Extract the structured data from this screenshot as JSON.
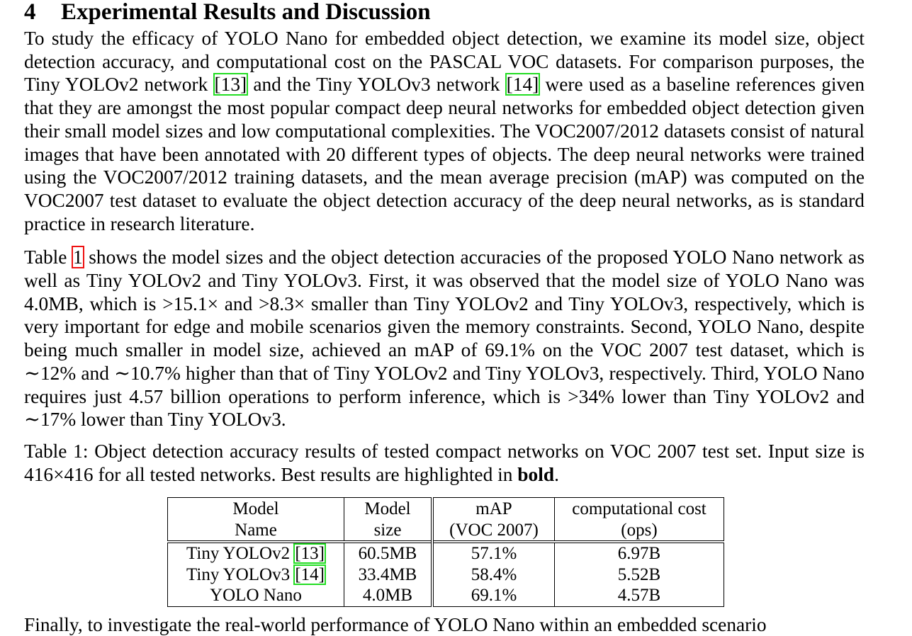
{
  "section": {
    "number": "4",
    "title": "Experimental Results and Discussion"
  },
  "para1": {
    "t1": "To study the efficacy of YOLO Nano for embedded object detection, we examine its model size, object detection accuracy, and computational cost on the PASCAL VOC datasets. For comparison purposes, the Tiny YOLOv2 network ",
    "cite1": "[13]",
    "t2": " and the Tiny YOLOv3 network ",
    "cite2": "[14]",
    "t3": " were used as a baseline references given that they are amongst the most popular compact deep neural networks for embedded object detection given their small model sizes and low computational complexities. The VOC2007/2012 datasets consist of natural images that have been annotated with 20 different types of objects. The deep neural networks were trained using the VOC2007/2012 training datasets, and the mean average precision (mAP) was computed on the VOC2007 test dataset to evaluate the object detection accuracy of the deep neural networks, as is standard practice in research literature."
  },
  "para2": {
    "t1": "Table ",
    "ref": "1",
    "t2": " shows the model sizes and the object detection accuracies of the proposed YOLO Nano network as well as Tiny YOLOv2 and Tiny YOLOv3. First, it was observed that the model size of YOLO Nano was 4.0MB, which is >15.1× and >8.3× smaller than Tiny YOLOv2 and Tiny YOLOv3, respectively, which is very important for edge and mobile scenarios given the memory constraints. Second, YOLO Nano, despite being much smaller in model size, achieved an mAP of 69.1% on the VOC 2007 test dataset, which is ∼12% and ∼10.7% higher than that of Tiny YOLOv2 and Tiny YOLOv3, respectively. Third, YOLO Nano requires just 4.57 billion operations to perform inference, which is >34% lower than Tiny YOLOv2 and ∼17% lower than Tiny YOLOv3."
  },
  "caption": {
    "t1": "Table 1: Object detection accuracy results of tested compact networks on VOC 2007 test set. Input size is 416×416 for all tested networks. Best results are highlighted in ",
    "bold": "bold",
    "t2": "."
  },
  "table": {
    "headers": [
      {
        "line1": "Model",
        "line2": "Name"
      },
      {
        "line1": "Model",
        "line2": "size"
      },
      {
        "line1": "mAP",
        "line2": "(VOC 2007)"
      },
      {
        "line1": "computational cost",
        "line2": "(ops)"
      }
    ],
    "rows": [
      {
        "name": "Tiny YOLOv2 ",
        "cite": "[13]",
        "size": "60.5MB",
        "map": "57.1%",
        "ops": "6.97B"
      },
      {
        "name": "Tiny YOLOv3 ",
        "cite": "[14]",
        "size": "33.4MB",
        "map": "58.4%",
        "ops": "5.52B"
      },
      {
        "name": "YOLO Nano",
        "cite": "",
        "size": "4.0MB",
        "map": "69.1%",
        "ops": "4.57B"
      }
    ]
  },
  "cutoff_text": "Finally, to investigate the real-world performance of YOLO Nano within an embedded scenario"
}
